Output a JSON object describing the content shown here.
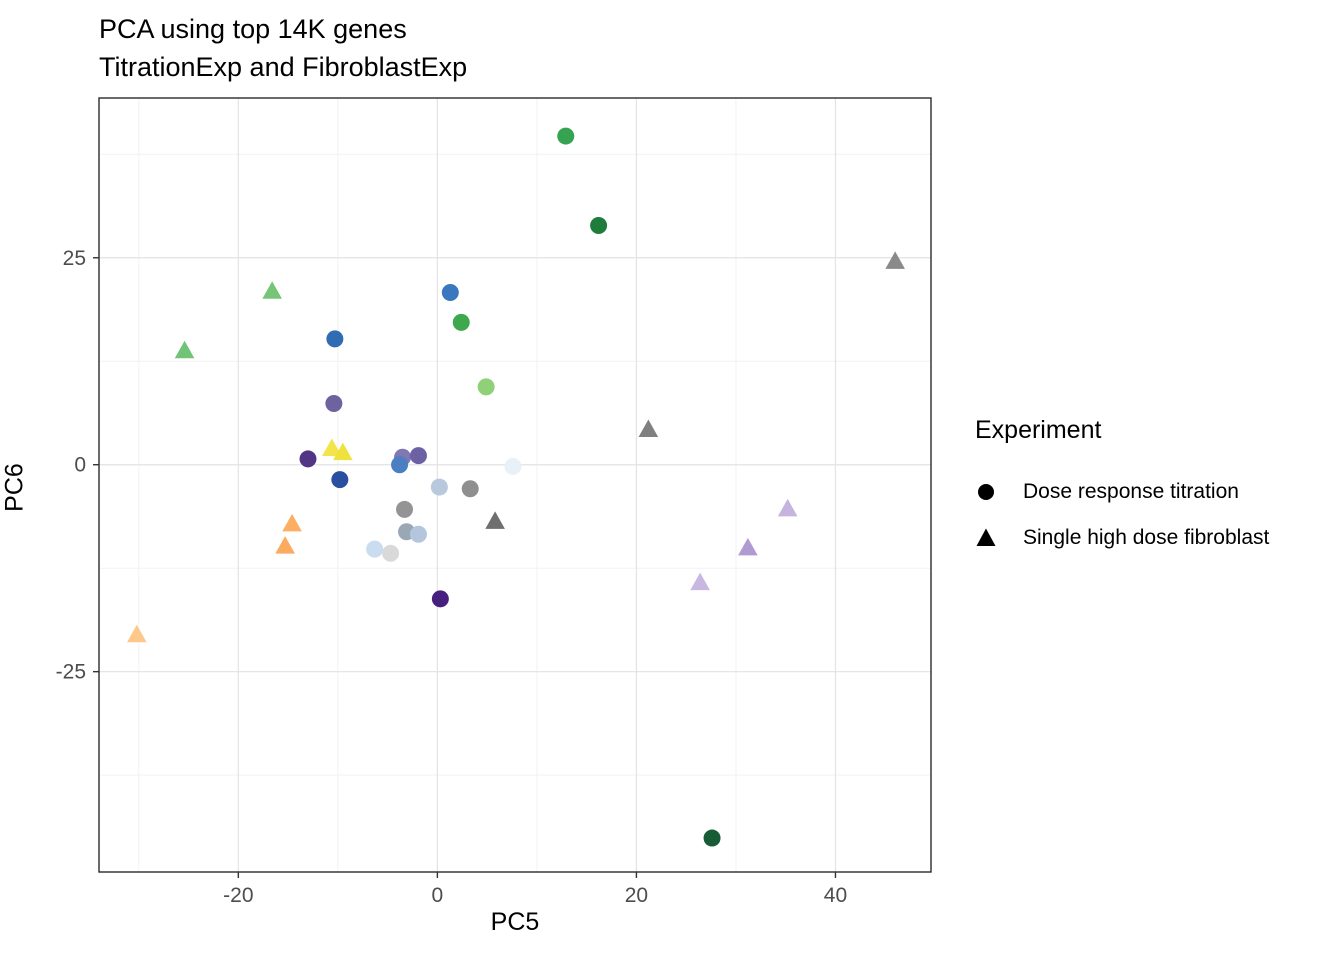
{
  "title": "PCA using top 14K genes",
  "subtitle": "TitrationExp and FibroblastExp",
  "legend": {
    "title": "Experiment",
    "entries": [
      {
        "label": "Dose response titration",
        "shape": "circle"
      },
      {
        "label": "Single high dose fibroblast",
        "shape": "triangle"
      }
    ]
  },
  "chart_data": {
    "type": "scatter",
    "title": "PCA using top 14K genes",
    "subtitle": "TitrationExp and FibroblastExp",
    "xlabel": "PC5",
    "ylabel": "PC6",
    "xlim": [
      -34.0,
      49.6
    ],
    "ylim": [
      -49.2,
      44.3
    ],
    "x_ticks": [
      -20,
      0,
      20,
      40
    ],
    "y_ticks": [
      -25,
      0,
      25
    ],
    "x_minor_ticks": [
      -30,
      -10,
      10,
      30
    ],
    "y_minor_ticks": [
      -37.5,
      -12.5,
      12.5,
      37.5
    ],
    "grid": true,
    "legend_position": "right",
    "series": [
      {
        "name": "Dose response titration",
        "shape": "circle",
        "points": [
          {
            "x": 12.9,
            "y": 39.7,
            "color": "#36a352"
          },
          {
            "x": 16.2,
            "y": 28.9,
            "color": "#1f7d3c"
          },
          {
            "x": 1.3,
            "y": 20.8,
            "color": "#3a77be"
          },
          {
            "x": 2.4,
            "y": 17.2,
            "color": "#3ea84e"
          },
          {
            "x": -10.3,
            "y": 15.2,
            "color": "#2f6cb3"
          },
          {
            "x": 4.9,
            "y": 9.4,
            "color": "#90d078"
          },
          {
            "x": -10.4,
            "y": 7.4,
            "color": "#6f639f"
          },
          {
            "x": -13.0,
            "y": 0.7,
            "color": "#533586"
          },
          {
            "x": -3.5,
            "y": 0.9,
            "color": "#8077b3"
          },
          {
            "x": -1.9,
            "y": 1.1,
            "color": "#6c61a5"
          },
          {
            "x": -3.8,
            "y": 0.0,
            "color": "#4a7fc1"
          },
          {
            "x": -9.8,
            "y": -1.8,
            "color": "#2a4fa0"
          },
          {
            "x": 0.2,
            "y": -2.7,
            "color": "#b9c9dd"
          },
          {
            "x": 3.3,
            "y": -2.9,
            "color": "#8f8f8f"
          },
          {
            "x": 7.6,
            "y": -0.2,
            "color": "#e8f1f8"
          },
          {
            "x": -3.3,
            "y": -5.4,
            "color": "#949494"
          },
          {
            "x": -3.1,
            "y": -8.1,
            "color": "#9aa7b5"
          },
          {
            "x": -1.9,
            "y": -8.4,
            "color": "#b3c6de"
          },
          {
            "x": -6.3,
            "y": -10.2,
            "color": "#c9dcf0"
          },
          {
            "x": -4.7,
            "y": -10.7,
            "color": "#d9d9d9"
          },
          {
            "x": 0.3,
            "y": -16.2,
            "color": "#47207f"
          },
          {
            "x": 27.6,
            "y": -45.1,
            "color": "#175c35"
          }
        ]
      },
      {
        "name": "Single high dose fibroblast",
        "shape": "triangle",
        "points": [
          {
            "x": -16.6,
            "y": 20.9,
            "color": "#76c576"
          },
          {
            "x": -25.4,
            "y": 13.7,
            "color": "#72c277"
          },
          {
            "x": 46.0,
            "y": 24.5,
            "color": "#8a8a8a"
          },
          {
            "x": 21.2,
            "y": 4.2,
            "color": "#808080"
          },
          {
            "x": -10.6,
            "y": 1.9,
            "color": "#f3e44c"
          },
          {
            "x": -9.5,
            "y": 1.4,
            "color": "#efe23e"
          },
          {
            "x": -14.6,
            "y": -7.2,
            "color": "#fcae63"
          },
          {
            "x": -15.3,
            "y": -9.9,
            "color": "#fbab60"
          },
          {
            "x": -30.2,
            "y": -20.6,
            "color": "#fcc98b"
          },
          {
            "x": 5.8,
            "y": -6.9,
            "color": "#6f6f6f"
          },
          {
            "x": 35.2,
            "y": -5.4,
            "color": "#c5b4de"
          },
          {
            "x": 31.2,
            "y": -10.1,
            "color": "#af9bd1"
          },
          {
            "x": 26.4,
            "y": -14.3,
            "color": "#c8b7e0"
          }
        ]
      }
    ]
  }
}
